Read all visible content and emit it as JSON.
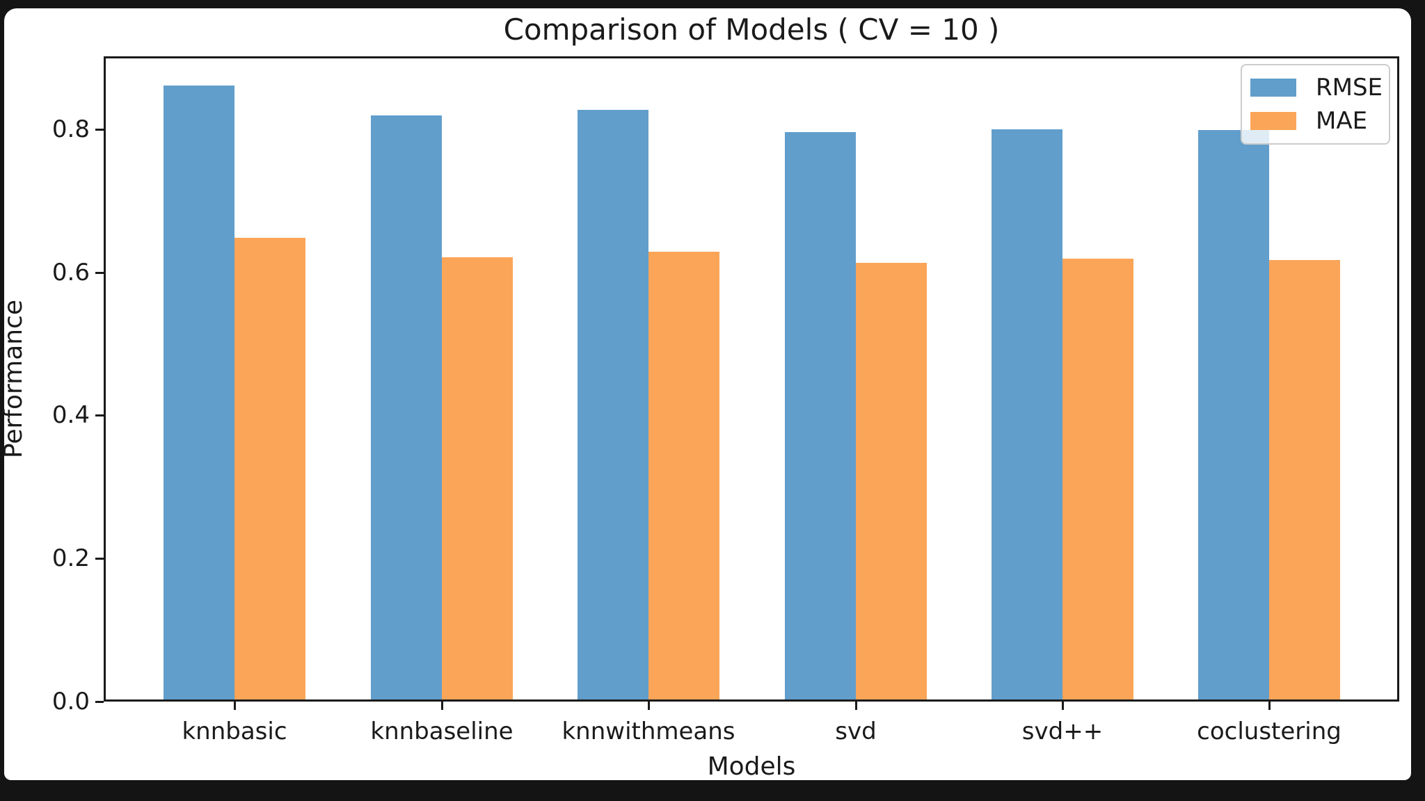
{
  "frame": {
    "outer_color": "#141414",
    "figure_background": "#ffffff"
  },
  "chart_data": {
    "type": "bar",
    "title": "Comparison of Models ( CV = 10 )",
    "xlabel": "Models",
    "ylabel": "Performance",
    "categories": [
      "knnbasic",
      "knnbaseline",
      "knnwithmeans",
      "svd",
      "svd++",
      "coclustering"
    ],
    "series": [
      {
        "name": "RMSE",
        "color": "#619ECC",
        "values": [
          0.861,
          0.819,
          0.827,
          0.796,
          0.8,
          0.799
        ]
      },
      {
        "name": "MAE",
        "color": "#FBA558",
        "values": [
          0.648,
          0.621,
          0.629,
          0.613,
          0.619,
          0.617
        ]
      }
    ],
    "ylim": [
      0,
      0.902
    ],
    "yticks": [
      "0.0",
      "0.2",
      "0.4",
      "0.6",
      "0.8"
    ],
    "grid": false,
    "legend_position": "upper right",
    "legend_background_opacity": 0.8,
    "axis_text_color": "#1a1a1a"
  }
}
